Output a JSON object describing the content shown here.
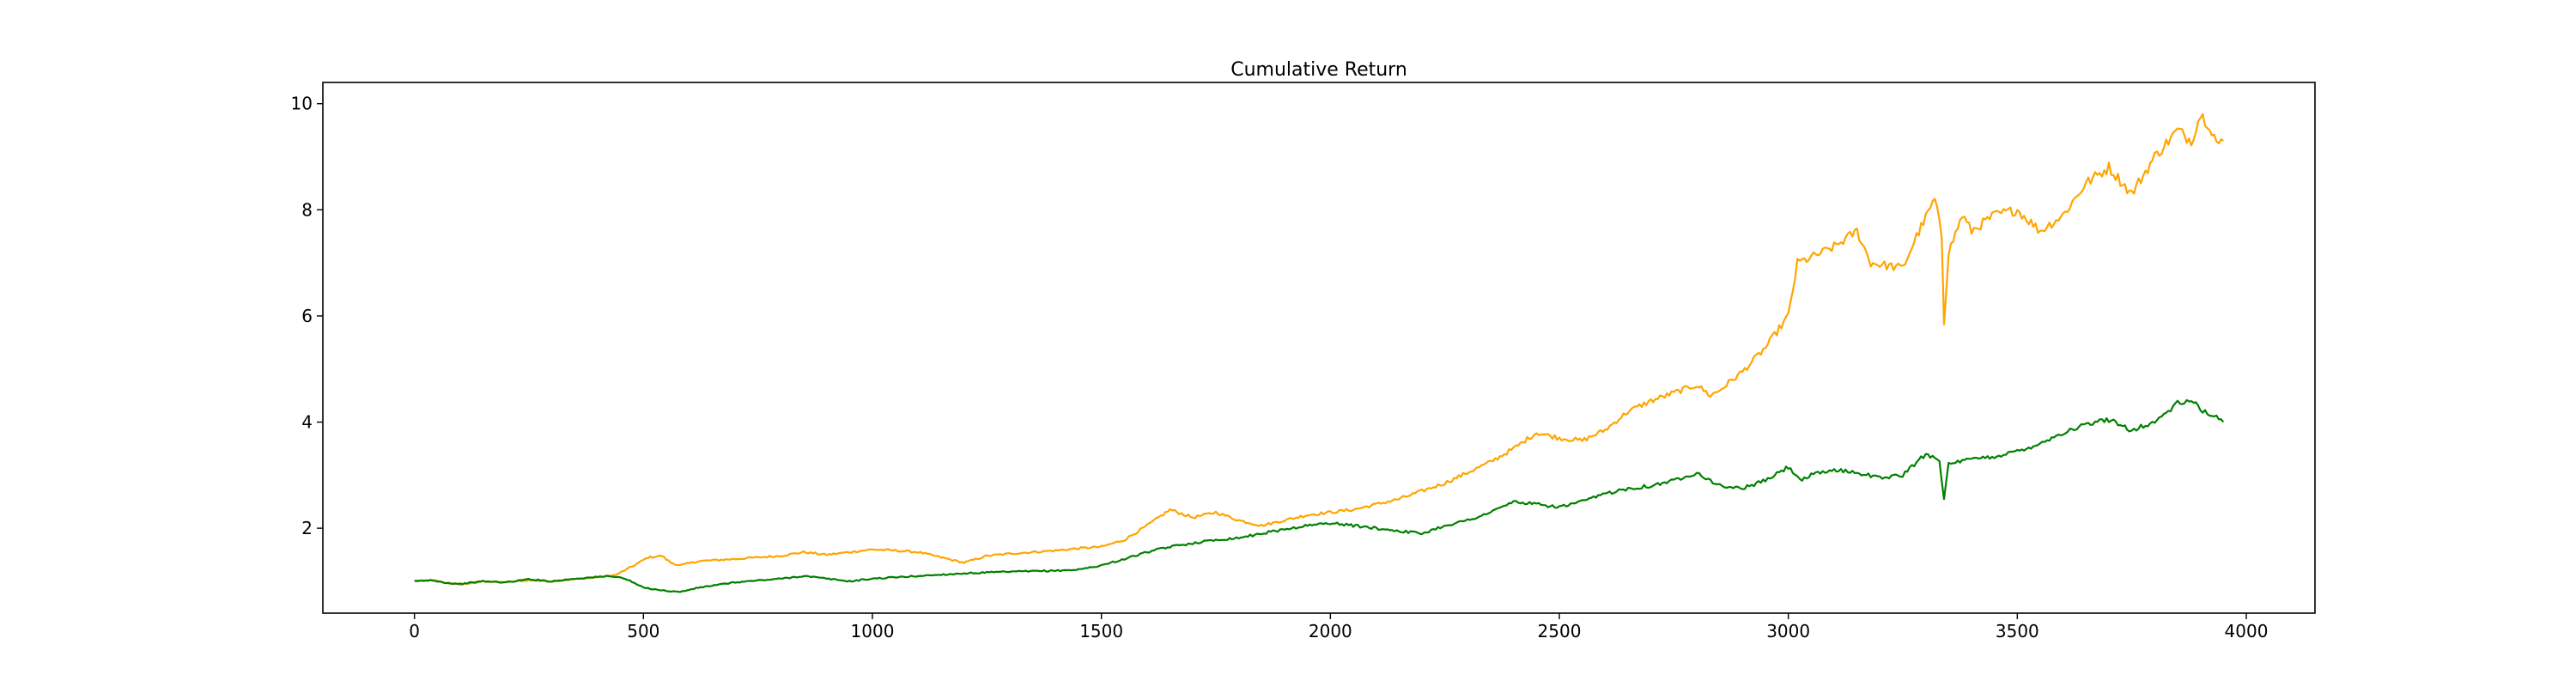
{
  "chart_data": {
    "type": "line",
    "title": "Cumulative Return",
    "xlabel": "",
    "ylabel": "",
    "xlim": [
      -200,
      4150
    ],
    "ylim": [
      0.4,
      10.4
    ],
    "grid": false,
    "legend": "none",
    "x_ticks": [
      0,
      500,
      1000,
      1500,
      2000,
      2500,
      3000,
      3500,
      4000
    ],
    "y_ticks": [
      2,
      4,
      6,
      8,
      10
    ],
    "series": [
      {
        "name": "orange-series",
        "color": "#ffa500",
        "points": [
          [
            0,
            1.0
          ],
          [
            40,
            1.02
          ],
          [
            70,
            0.97
          ],
          [
            100,
            0.94
          ],
          [
            150,
            1.0
          ],
          [
            200,
            0.98
          ],
          [
            250,
            1.02
          ],
          [
            300,
            1.0
          ],
          [
            350,
            1.04
          ],
          [
            400,
            1.08
          ],
          [
            440,
            1.12
          ],
          [
            480,
            1.3
          ],
          [
            510,
            1.45
          ],
          [
            540,
            1.48
          ],
          [
            560,
            1.35
          ],
          [
            580,
            1.3
          ],
          [
            620,
            1.38
          ],
          [
            700,
            1.42
          ],
          [
            800,
            1.48
          ],
          [
            850,
            1.55
          ],
          [
            900,
            1.5
          ],
          [
            1000,
            1.6
          ],
          [
            1050,
            1.58
          ],
          [
            1100,
            1.55
          ],
          [
            1150,
            1.45
          ],
          [
            1200,
            1.35
          ],
          [
            1250,
            1.48
          ],
          [
            1300,
            1.52
          ],
          [
            1400,
            1.58
          ],
          [
            1450,
            1.62
          ],
          [
            1500,
            1.65
          ],
          [
            1550,
            1.78
          ],
          [
            1600,
            2.05
          ],
          [
            1650,
            2.35
          ],
          [
            1700,
            2.2
          ],
          [
            1750,
            2.3
          ],
          [
            1800,
            2.15
          ],
          [
            1850,
            2.05
          ],
          [
            1900,
            2.15
          ],
          [
            1950,
            2.25
          ],
          [
            2000,
            2.3
          ],
          [
            2050,
            2.35
          ],
          [
            2100,
            2.45
          ],
          [
            2150,
            2.55
          ],
          [
            2200,
            2.7
          ],
          [
            2250,
            2.85
          ],
          [
            2300,
            3.05
          ],
          [
            2350,
            3.25
          ],
          [
            2400,
            3.5
          ],
          [
            2450,
            3.8
          ],
          [
            2500,
            3.7
          ],
          [
            2550,
            3.65
          ],
          [
            2600,
            3.85
          ],
          [
            2650,
            4.2
          ],
          [
            2700,
            4.4
          ],
          [
            2750,
            4.55
          ],
          [
            2800,
            4.7
          ],
          [
            2830,
            4.5
          ],
          [
            2850,
            4.6
          ],
          [
            2900,
            4.95
          ],
          [
            2950,
            5.4
          ],
          [
            3000,
            6.0
          ],
          [
            3020,
            7.0
          ],
          [
            3050,
            7.1
          ],
          [
            3100,
            7.3
          ],
          [
            3150,
            7.6
          ],
          [
            3180,
            7.0
          ],
          [
            3250,
            6.9
          ],
          [
            3280,
            7.5
          ],
          [
            3320,
            8.2
          ],
          [
            3335,
            7.5
          ],
          [
            3340,
            5.9
          ],
          [
            3350,
            7.2
          ],
          [
            3380,
            7.9
          ],
          [
            3400,
            7.6
          ],
          [
            3450,
            7.9
          ],
          [
            3500,
            8.0
          ],
          [
            3550,
            7.6
          ],
          [
            3600,
            7.9
          ],
          [
            3650,
            8.5
          ],
          [
            3700,
            8.8
          ],
          [
            3750,
            8.3
          ],
          [
            3800,
            9.0
          ],
          [
            3850,
            9.5
          ],
          [
            3880,
            9.3
          ],
          [
            3900,
            9.8
          ],
          [
            3920,
            9.6
          ],
          [
            3940,
            9.2
          ],
          [
            3950,
            9.3
          ]
        ]
      },
      {
        "name": "green-series",
        "color": "#008000",
        "points": [
          [
            0,
            1.0
          ],
          [
            40,
            1.02
          ],
          [
            70,
            0.97
          ],
          [
            100,
            0.95
          ],
          [
            150,
            1.0
          ],
          [
            200,
            0.98
          ],
          [
            250,
            1.04
          ],
          [
            300,
            1.0
          ],
          [
            350,
            1.05
          ],
          [
            400,
            1.08
          ],
          [
            430,
            1.1
          ],
          [
            460,
            1.05
          ],
          [
            500,
            0.88
          ],
          [
            550,
            0.82
          ],
          [
            580,
            0.8
          ],
          [
            620,
            0.88
          ],
          [
            700,
            0.98
          ],
          [
            800,
            1.05
          ],
          [
            850,
            1.1
          ],
          [
            900,
            1.05
          ],
          [
            950,
            1.0
          ],
          [
            1000,
            1.05
          ],
          [
            1100,
            1.1
          ],
          [
            1200,
            1.15
          ],
          [
            1300,
            1.18
          ],
          [
            1400,
            1.2
          ],
          [
            1450,
            1.22
          ],
          [
            1500,
            1.3
          ],
          [
            1550,
            1.42
          ],
          [
            1600,
            1.55
          ],
          [
            1650,
            1.65
          ],
          [
            1700,
            1.72
          ],
          [
            1750,
            1.78
          ],
          [
            1800,
            1.82
          ],
          [
            1850,
            1.9
          ],
          [
            1900,
            1.98
          ],
          [
            1950,
            2.05
          ],
          [
            2000,
            2.1
          ],
          [
            2050,
            2.05
          ],
          [
            2100,
            2.0
          ],
          [
            2150,
            1.95
          ],
          [
            2200,
            1.9
          ],
          [
            2250,
            2.05
          ],
          [
            2300,
            2.15
          ],
          [
            2350,
            2.3
          ],
          [
            2400,
            2.5
          ],
          [
            2450,
            2.45
          ],
          [
            2500,
            2.4
          ],
          [
            2550,
            2.5
          ],
          [
            2600,
            2.65
          ],
          [
            2650,
            2.75
          ],
          [
            2700,
            2.8
          ],
          [
            2750,
            2.9
          ],
          [
            2800,
            3.05
          ],
          [
            2850,
            2.8
          ],
          [
            2900,
            2.75
          ],
          [
            2950,
            2.9
          ],
          [
            3000,
            3.15
          ],
          [
            3030,
            2.9
          ],
          [
            3050,
            3.0
          ],
          [
            3100,
            3.1
          ],
          [
            3150,
            3.05
          ],
          [
            3200,
            2.95
          ],
          [
            3250,
            3.0
          ],
          [
            3300,
            3.4
          ],
          [
            3330,
            3.3
          ],
          [
            3340,
            2.55
          ],
          [
            3350,
            3.2
          ],
          [
            3400,
            3.3
          ],
          [
            3450,
            3.35
          ],
          [
            3500,
            3.45
          ],
          [
            3550,
            3.6
          ],
          [
            3600,
            3.8
          ],
          [
            3650,
            3.95
          ],
          [
            3700,
            4.05
          ],
          [
            3750,
            3.85
          ],
          [
            3800,
            4.0
          ],
          [
            3850,
            4.35
          ],
          [
            3880,
            4.4
          ],
          [
            3900,
            4.25
          ],
          [
            3920,
            4.15
          ],
          [
            3940,
            4.05
          ],
          [
            3950,
            4.0
          ]
        ]
      }
    ]
  }
}
